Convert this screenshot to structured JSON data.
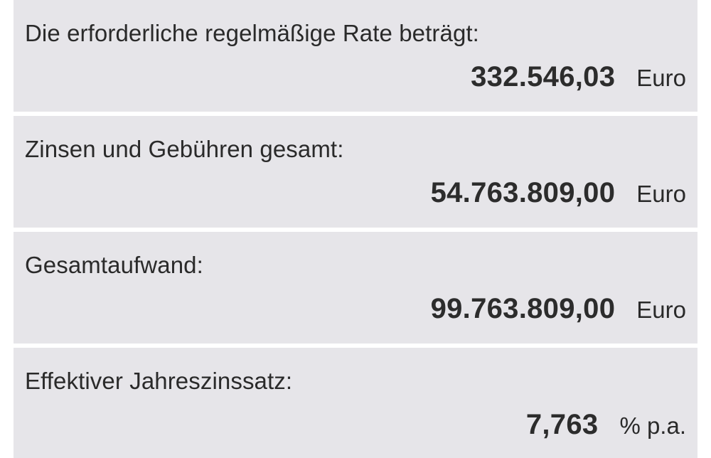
{
  "results": [
    {
      "label": "Die erforderliche regelmäßige Rate beträgt:",
      "value": "332.546,03",
      "unit": "Euro"
    },
    {
      "label": "Zinsen und Gebühren gesamt:",
      "value": "54.763.809,00",
      "unit": "Euro"
    },
    {
      "label": "Gesamtaufwand:",
      "value": "99.763.809,00",
      "unit": "Euro"
    },
    {
      "label": "Effektiver Jahreszinssatz:",
      "value": "7,763",
      "unit": "% p.a."
    }
  ],
  "colors": {
    "card_background": "#e6e5e9",
    "page_background": "#ffffff",
    "text": "#2a2a2a"
  }
}
